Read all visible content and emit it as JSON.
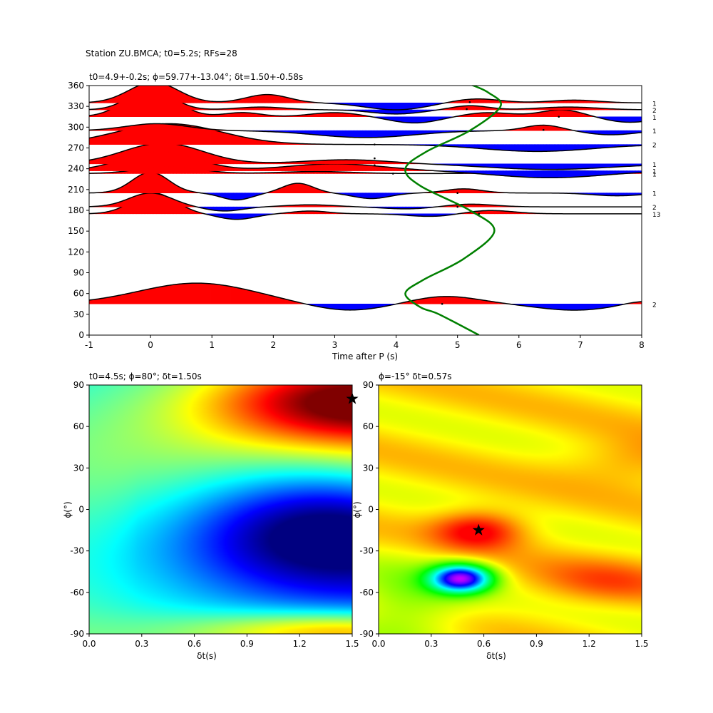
{
  "suptitle": "Station ZU.BMCA; t0=5.2s; RFs=28",
  "chart_data": [
    {
      "type": "line",
      "panel": "receiver-function-wiggles",
      "title": "t0=4.9+-0.2s; ϕ=59.77+-13.04°; δt=1.50+-0.58s",
      "xlabel": "Time after P (s)",
      "ylabel": "",
      "xlim": [
        -1,
        8
      ],
      "ylim": [
        0,
        360
      ],
      "xticks": [
        "-1",
        "0",
        "1",
        "2",
        "3",
        "4",
        "5",
        "6",
        "7",
        "8"
      ],
      "yticks": [
        "0",
        "30",
        "60",
        "90",
        "120",
        "150",
        "180",
        "210",
        "240",
        "270",
        "300",
        "330",
        "360"
      ],
      "positive_fill": "#ff0000",
      "negative_fill": "#0000ff",
      "trace_color": "#000000",
      "traces": [
        {
          "baz": 45,
          "count": "2",
          "pulses": [
            [
              0.75,
              30,
              0.95
            ],
            [
              3.2,
              -10,
              0.6
            ],
            [
              4.8,
              11,
              0.55
            ],
            [
              6.9,
              -9,
              0.6
            ],
            [
              8.0,
              5,
              0.3
            ]
          ],
          "marker": [
            4.75,
            45
          ]
        },
        {
          "baz": 175,
          "count": "13",
          "pulses": [
            [
              0.05,
              30,
              0.35
            ],
            [
              1.4,
              -8,
              0.3
            ],
            [
              2.6,
              4,
              0.3
            ],
            [
              4.6,
              -4,
              0.4
            ],
            [
              5.5,
              5,
              0.4
            ]
          ],
          "marker": [
            5.35,
            175
          ]
        },
        {
          "baz": 185,
          "count": "2",
          "pulses": [
            [
              0.0,
              20,
              0.35
            ],
            [
              1.2,
              -6,
              0.3
            ],
            [
              2.6,
              3,
              0.4
            ],
            [
              4.2,
              -3,
              0.4
            ],
            [
              5.2,
              4,
              0.4
            ]
          ],
          "marker": [
            5.0,
            185
          ]
        },
        {
          "baz": 205,
          "count": "1",
          "pulses": [
            [
              0.0,
              30,
              0.3
            ],
            [
              1.4,
              -10,
              0.25
            ],
            [
              2.4,
              14,
              0.25
            ],
            [
              3.6,
              -8,
              0.3
            ],
            [
              5.1,
              6,
              0.3
            ],
            [
              7.6,
              -4,
              0.4
            ]
          ],
          "marker": [
            5.0,
            205
          ]
        },
        {
          "baz": 233,
          "count": "1",
          "pulses": [
            [
              0.3,
              10,
              0.5
            ],
            [
              2.7,
              3,
              0.6
            ],
            [
              6.8,
              4,
              0.8
            ]
          ],
          "marker": [
            3.95,
            233
          ]
        },
        {
          "baz": 237,
          "count": "1",
          "pulses": [
            [
              0.15,
              28,
              0.6
            ],
            [
              3.0,
              10,
              0.8
            ],
            [
              6.5,
              -10,
              0.9
            ]
          ],
          "marker": [
            3.65,
            245
          ]
        },
        {
          "baz": 247,
          "count": "1",
          "pulses": [
            [
              0.2,
              30,
              0.65
            ],
            [
              3.2,
              6,
              0.7
            ],
            [
              6.5,
              -8,
              1.0
            ]
          ],
          "marker": [
            3.65,
            255
          ]
        },
        {
          "baz": 275,
          "count": "2",
          "pulses": [
            [
              0.3,
              30,
              0.85
            ],
            [
              6.3,
              -10,
              0.9
            ]
          ],
          "marker": [
            3.65,
            275
          ]
        },
        {
          "baz": 295,
          "count": "1",
          "pulses": [
            [
              0.1,
              10,
              0.5
            ],
            [
              3.5,
              -10,
              0.8
            ],
            [
              6.4,
              8,
              0.3
            ],
            [
              7.5,
              -6,
              0.4
            ]
          ],
          "marker": [
            6.4,
            296
          ]
        },
        {
          "baz": 315,
          "count": "1",
          "pulses": [
            [
              0.0,
              40,
              0.4
            ],
            [
              1.5,
              6,
              0.3
            ],
            [
              3.0,
              6,
              0.4
            ],
            [
              4.3,
              -9,
              0.4
            ],
            [
              5.5,
              6,
              0.4
            ],
            [
              6.7,
              10,
              0.35
            ],
            [
              7.8,
              -8,
              0.4
            ]
          ],
          "marker": [
            6.65,
            315
          ]
        },
        {
          "baz": 325,
          "count": "2",
          "pulses": [
            [
              0.0,
              30,
              0.35
            ],
            [
              1.8,
              4,
              0.4
            ],
            [
              4.0,
              -6,
              0.4
            ],
            [
              5.2,
              6,
              0.3
            ],
            [
              6.8,
              4,
              0.5
            ]
          ],
          "marker": [
            5.15,
            326
          ]
        },
        {
          "baz": 335,
          "count": "1",
          "pulses": [
            [
              0.05,
              30,
              0.4
            ],
            [
              1.9,
              12,
              0.35
            ],
            [
              4.0,
              -10,
              0.5
            ],
            [
              5.3,
              6,
              0.4
            ],
            [
              6.9,
              4,
              0.4
            ]
          ],
          "marker": [
            5.2,
            336
          ]
        }
      ],
      "model_curve": {
        "color": "#008000",
        "label": "",
        "points": [
          [
            5.35,
            0
          ],
          [
            4.7,
            30
          ],
          [
            4.4,
            40
          ],
          [
            4.15,
            60
          ],
          [
            4.45,
            80
          ],
          [
            5.1,
            110
          ],
          [
            5.6,
            150
          ],
          [
            5.2,
            180
          ],
          [
            4.4,
            215
          ],
          [
            4.15,
            240
          ],
          [
            4.5,
            265
          ],
          [
            5.2,
            295
          ],
          [
            5.7,
            330
          ],
          [
            5.5,
            350
          ],
          [
            5.2,
            362
          ]
        ]
      }
    },
    {
      "type": "heatmap",
      "panel": "splitting-grid-left",
      "title": "t0=4.5s; ϕ=80°; δt=1.50s",
      "xlabel": "δt(s)",
      "ylabel": "ϕ(°)",
      "xlim": [
        0.0,
        1.5
      ],
      "ylim": [
        -90,
        90
      ],
      "xticks": [
        "0.0",
        "0.3",
        "0.6",
        "0.9",
        "1.2",
        "1.5"
      ],
      "yticks": [
        "-90",
        "-60",
        "-30",
        "0",
        "30",
        "60",
        "90"
      ],
      "colormap": "jet",
      "best": {
        "dt": 1.5,
        "phi": 80
      }
    },
    {
      "type": "heatmap",
      "panel": "splitting-grid-right",
      "title": "ϕ=-15° δt=0.57s",
      "xlabel": "δt(s)",
      "ylabel": "ϕ(°)",
      "xlim": [
        0.0,
        1.5
      ],
      "ylim": [
        -90,
        90
      ],
      "xticks": [
        "0.0",
        "0.3",
        "0.6",
        "0.9",
        "1.2",
        "1.5"
      ],
      "yticks": [
        "-90",
        "-60",
        "-30",
        "0",
        "30",
        "60",
        "90"
      ],
      "colormap": "hsv",
      "best": {
        "dt": 0.57,
        "phi": -15
      }
    }
  ]
}
